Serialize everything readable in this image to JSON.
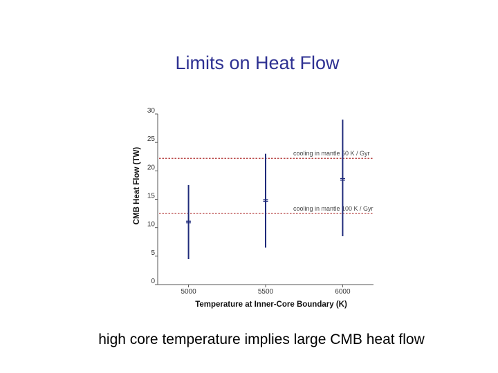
{
  "slide": {
    "title": "Limits on Heat Flow",
    "caption": "high core temperature implies large CMB heat flow"
  },
  "chart_data": {
    "type": "scatter",
    "xlabel": "Temperature at Inner-Core Boundary   (K)",
    "ylabel": "CMB  Heat  Flow  (TW)",
    "x_ticks": [
      5000,
      5500,
      6000
    ],
    "y_ticks": [
      0,
      5,
      10,
      15,
      20,
      25,
      30
    ],
    "xlim": [
      4800,
      6200
    ],
    "ylim": [
      0,
      30
    ],
    "grid": false,
    "points": [
      {
        "x": 5000,
        "y": 11,
        "y_low": 4.5,
        "y_high": 17.5
      },
      {
        "x": 5500,
        "y": 14.8,
        "y_low": 6.5,
        "y_high": 23
      },
      {
        "x": 6000,
        "y": 18.5,
        "y_low": 8.5,
        "y_high": 29
      }
    ],
    "reference_lines": [
      {
        "y": 22.2,
        "label": "cooling in mantle 50 K / Gyr"
      },
      {
        "y": 12.5,
        "label": "cooling in mantle 100 K / Gyr"
      }
    ],
    "colors": {
      "series": "#1f2a7a",
      "reference": "#b03030",
      "axis": "#555555"
    }
  }
}
